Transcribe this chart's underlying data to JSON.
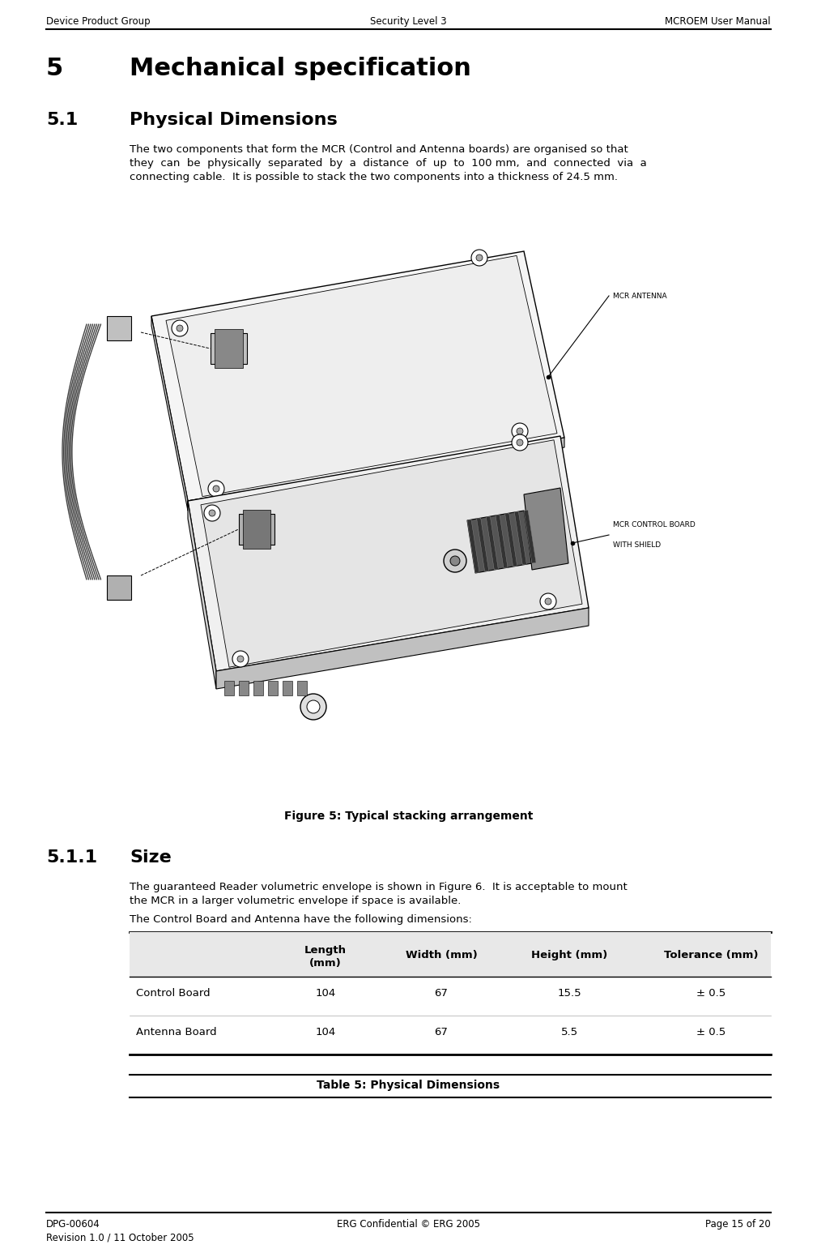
{
  "header_left": "Device Product Group",
  "header_center": "Security Level 3",
  "header_right": "MCROEM User Manual",
  "footer_left_line1": "DPG-00604",
  "footer_left_line2": "Revision 1.0 / 11 October 2005",
  "footer_center": "ERG Confidential © ERG 2005",
  "footer_right": "Page 15 of 20",
  "section_number": "5",
  "section_title": "Mechanical specification",
  "subsection_number": "5.1",
  "subsection_title": "Physical Dimensions",
  "body_line1": "The two components that form the MCR (Control and Antenna boards) are organised so that",
  "body_line2": "they  can  be  physically  separated  by  a  distance  of  up  to  100 mm,  and  connected  via  a",
  "body_line3": "connecting cable.  It is possible to stack the two components into a thickness of 24.5 mm.",
  "figure_caption": "Figure 5: Typical stacking arrangement",
  "subsection2_number": "5.1.1",
  "subsection2_title": "Size",
  "size_line1": "The guaranteed Reader volumetric envelope is shown in Figure 6.  It is acceptable to mount",
  "size_line2": "the MCR in a larger volumetric envelope if space is available.",
  "size_line3": "The Control Board and Antenna have the following dimensions:",
  "table_col0_header": "",
  "table_col1_header": "Length\n(mm)",
  "table_col2_header": "Width (mm)",
  "table_col3_header": "Height (mm)",
  "table_col4_header": "Tolerance (mm)",
  "row1_col0": "Control Board",
  "row1_col1": "104",
  "row1_col2": "67",
  "row1_col3": "15.5",
  "row1_col4": "± 0.5",
  "row2_col0": "Antenna Board",
  "row2_col1": "104",
  "row2_col2": "67",
  "row2_col3": "5.5",
  "row2_col4": "± 0.5",
  "table_caption": "Table 5: Physical Dimensions",
  "label_antenna": "MCR ANTENNA",
  "label_control1": "MCR CONTROL BOARD",
  "label_control2": "WITH SHIELD",
  "bg_color": "#ffffff",
  "text_color": "#000000",
  "header_fontsize": 8.5,
  "section_fontsize": 22,
  "subsection_fontsize": 16,
  "body_fontsize": 9.5,
  "table_header_fontsize": 9.5,
  "table_body_fontsize": 9.5,
  "figure_label_fontsize": 6.5,
  "table_header_bg": "#e8e8e8",
  "line_color": "#000000"
}
